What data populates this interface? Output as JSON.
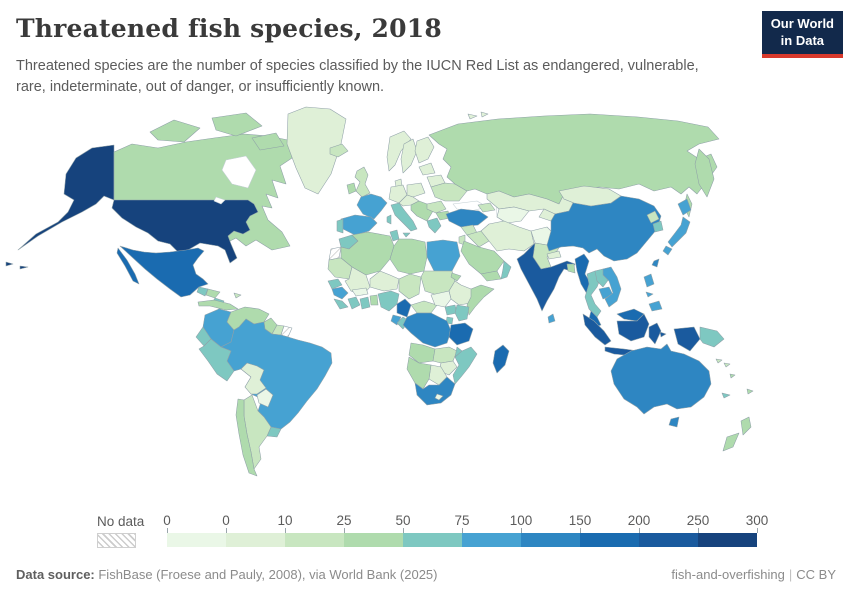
{
  "header": {
    "title": "Threatened fish species, 2018",
    "subtitle": "Threatened species are the number of species classified by the IUCN Red List as endangered, vulnerable, rare, indeterminate, out of danger, or insufficiently known.",
    "logo": {
      "line1": "Our World",
      "line2": "in Data"
    }
  },
  "colors": {
    "logo_bg": "#12294B",
    "logo_accent": "#D8392C",
    "country_border": "#8fa0a8",
    "ocean": "#FFFFFF"
  },
  "legend": {
    "no_data_label": "No data",
    "ticks": [
      "0",
      "0",
      "10",
      "25",
      "50",
      "75",
      "100",
      "150",
      "200",
      "250",
      "300"
    ],
    "bins": [
      {
        "range": "0",
        "color": "#EAF7E7"
      },
      {
        "range": "0–10",
        "color": "#DFF0D7"
      },
      {
        "range": "10–25",
        "color": "#C8E6C0"
      },
      {
        "range": "25–50",
        "color": "#AFDBAD"
      },
      {
        "range": "50–75",
        "color": "#7EC8C1"
      },
      {
        "range": "75–100",
        "color": "#46A2D2"
      },
      {
        "range": "100–150",
        "color": "#2E86C2"
      },
      {
        "range": "150–200",
        "color": "#1A6BB0"
      },
      {
        "range": "200–250",
        "color": "#1A5A9E"
      },
      {
        "range": "250–300",
        "color": "#16437D"
      }
    ]
  },
  "map": {
    "countries": {
      "usa": 10,
      "canada": 4,
      "greenland": 2,
      "mexico": 8,
      "guatemala": 5,
      "honduras": 4,
      "nicaragua": 5,
      "costa-rica": 5,
      "panama": 5,
      "cuba": 4,
      "jamaica": 5,
      "hispaniola": 5,
      "puerto-rico": 5,
      "bahamas": 3,
      "lesser-antilles": 3,
      "trinidad": 5,
      "colombia": 6,
      "venezuela": 4,
      "guyana": 4,
      "suriname": 3,
      "french-guiana": "nodata",
      "ecuador": 5,
      "peru": 5,
      "brazil": 6,
      "bolivia": 2,
      "paraguay": 1,
      "chile": 4,
      "argentina": 3,
      "uruguay": 5,
      "iceland": 3,
      "uk": 3,
      "ireland": 4,
      "norway": 2,
      "sweden": 2,
      "finland": 2,
      "denmark": 2,
      "germany": 2,
      "poland": 2,
      "baltics": 2,
      "belarus": 2,
      "ukraine": 3,
      "france": 6,
      "spain": 6,
      "portugal": 5,
      "italy": 5,
      "austria-region": 2,
      "balkans": 4,
      "greece": 5,
      "romania": 3,
      "bulgaria": 4,
      "turkey": 7,
      "caucasus": 3,
      "russia": 4,
      "svalbard": 2,
      "kazakhstan": 2,
      "uzbek-turkmen": 1,
      "kyrgyz-tajik": 2,
      "syria": 3,
      "jordan-israel": 3,
      "iraq": 3,
      "iran": 2,
      "afghanistan": 1,
      "pakistan": 3,
      "saudi": 4,
      "yemen": 4,
      "oman": 5,
      "india": 9,
      "nepal": 2,
      "bangladesh": 4,
      "sri-lanka": 6,
      "myanmar": 8,
      "thailand": 5,
      "laos": 5,
      "cambodia": 6,
      "vietnam": 6,
      "malaysia": 8,
      "indonesia": 9,
      "philippines": 6,
      "taiwan": 7,
      "china": 7,
      "mongolia": 2,
      "north-korea": 3,
      "south-korea": 5,
      "japan": 6,
      "papua-new-guinea": 5,
      "morocco": 5,
      "western-sahara": "nodata",
      "algeria": 4,
      "tunisia": 5,
      "libya": 4,
      "egypt": 6,
      "mauritania": 3,
      "mali": 2,
      "niger": 2,
      "chad": 3,
      "sudan": 3,
      "eritrea": 4,
      "ethiopia": 2,
      "somalia": 4,
      "senegal": 5,
      "guinea": 6,
      "sierra-leone-liberia": 5,
      "ivory-coast": 5,
      "burkina": 1,
      "ghana": 5,
      "togo-benin": 4,
      "nigeria": 5,
      "cameroon": 8,
      "car": 3,
      "south-sudan": 1,
      "uganda": 5,
      "kenya": 5,
      "rwanda-burundi": 5,
      "drc": 7,
      "congo": 5,
      "gabon": 6,
      "tanzania": 8,
      "angola": 4,
      "zambia": 3,
      "malawi": 5,
      "mozambique": 5,
      "zimbabwe": 2,
      "botswana": 2,
      "namibia": 4,
      "south-africa": 7,
      "lesotho": 1,
      "madagascar": 8,
      "australia": 7,
      "new-zealand": 4,
      "new-caledonia": 5,
      "fiji": 4,
      "solomon": 3,
      "vanuatu": 4
    }
  },
  "footer": {
    "source_label": "Data source:",
    "source_text": " FishBase (Froese and Pauly, 2008), via World Bank (2025)",
    "right_text": "fish-and-overfishing",
    "divider": "|",
    "license": "CC BY"
  }
}
